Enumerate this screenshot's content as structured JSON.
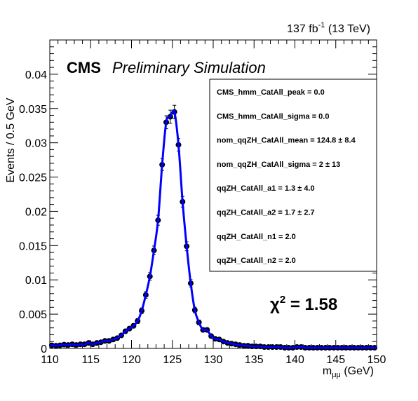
{
  "chart_data": {
    "type": "scatter",
    "lumi_label": "137 fb⁻¹ (13 TeV)",
    "lumi_main": "137 fb",
    "lumi_sup": "-1",
    "lumi_tail": " (13 TeV)",
    "cms_label": "CMS",
    "status_label": "Preliminary Simulation",
    "xlabel_main": "m",
    "xlabel_sub": "μμ",
    "xlabel_unit": " (GeV)",
    "ylabel": "Events / 0.5 GeV",
    "xlim": [
      110,
      150
    ],
    "ylim": [
      0,
      0.045
    ],
    "x_ticks": [
      "110",
      "115",
      "120",
      "125",
      "130",
      "135",
      "140",
      "145",
      "150"
    ],
    "y_ticks": [
      "0",
      "0.005",
      "0.01",
      "0.015",
      "0.02",
      "0.025",
      "0.03",
      "0.035",
      "0.04"
    ],
    "chi2_label": "χ",
    "chi2_sup": "2",
    "chi2_value": " = 1.58",
    "fit_color": "#0000ff",
    "marker_color": "#000000",
    "parameters": [
      "CMS_hmm_CatAll_peak =  0.0",
      "CMS_hmm_CatAll_sigma =  0.0",
      "nom_qqZH_CatAll_mean =  124.8 ± 8.4",
      "nom_qqZH_CatAll_sigma =  2 ± 13",
      "qqZH_CatAll_a1 =  1.3 ± 4.0",
      "qqZH_CatAll_a2 =  1.7 ± 2.7",
      "qqZH_CatAll_n1 =  2.0",
      "qqZH_CatAll_n2 =  2.0"
    ],
    "points": [
      [
        110.25,
        0.00045
      ],
      [
        110.75,
        0.0004
      ],
      [
        111.25,
        0.00045
      ],
      [
        111.75,
        0.00055
      ],
      [
        112.25,
        0.0005
      ],
      [
        112.75,
        0.0006
      ],
      [
        113.25,
        0.0005
      ],
      [
        113.75,
        0.0006
      ],
      [
        114.25,
        0.0006
      ],
      [
        114.75,
        0.0008
      ],
      [
        115.25,
        0.0006
      ],
      [
        115.75,
        0.0008
      ],
      [
        116.25,
        0.0009
      ],
      [
        116.75,
        0.0011
      ],
      [
        117.25,
        0.0011
      ],
      [
        117.75,
        0.0013
      ],
      [
        118.25,
        0.0015
      ],
      [
        118.75,
        0.0019
      ],
      [
        119.25,
        0.0025
      ],
      [
        119.75,
        0.0029
      ],
      [
        120.25,
        0.0033
      ],
      [
        120.75,
        0.004
      ],
      [
        121.25,
        0.0055
      ],
      [
        121.75,
        0.0078
      ],
      [
        122.25,
        0.0105
      ],
      [
        122.75,
        0.0143
      ],
      [
        123.25,
        0.0187
      ],
      [
        123.75,
        0.0268
      ],
      [
        124.25,
        0.033
      ],
      [
        124.75,
        0.0338
      ],
      [
        125.25,
        0.0345
      ],
      [
        125.75,
        0.0297
      ],
      [
        126.25,
        0.0214
      ],
      [
        126.75,
        0.0149
      ],
      [
        127.25,
        0.0095
      ],
      [
        127.75,
        0.0056
      ],
      [
        128.25,
        0.0038
      ],
      [
        128.75,
        0.0027
      ],
      [
        129.25,
        0.0027
      ],
      [
        129.75,
        0.0018
      ],
      [
        130.25,
        0.0014
      ],
      [
        130.75,
        0.0013
      ],
      [
        131.25,
        0.001
      ],
      [
        131.75,
        0.0008
      ],
      [
        132.25,
        0.0007
      ],
      [
        132.75,
        0.0006
      ],
      [
        133.25,
        0.0005
      ],
      [
        133.75,
        0.0004
      ],
      [
        134.25,
        0.0004
      ],
      [
        134.75,
        0.0003
      ],
      [
        135.25,
        0.0003
      ],
      [
        135.75,
        0.0003
      ],
      [
        136.25,
        0.0002
      ],
      [
        136.75,
        0.0002
      ],
      [
        137.25,
        0.0002
      ],
      [
        137.75,
        0.0002
      ],
      [
        138.25,
        0.0002
      ],
      [
        138.75,
        0.0001
      ],
      [
        139.25,
        0.0001
      ],
      [
        139.75,
        0.0001
      ],
      [
        140.25,
        0.0002
      ],
      [
        140.75,
        0.0002
      ],
      [
        141.25,
        0.0001
      ],
      [
        141.75,
        0.0001
      ],
      [
        142.25,
        0.0001
      ],
      [
        142.75,
        0.0001
      ],
      [
        143.25,
        0.0001
      ],
      [
        143.75,
        0.0001
      ],
      [
        144.25,
        0.0001
      ],
      [
        144.75,
        0.0001
      ],
      [
        145.25,
        0.0001
      ],
      [
        145.75,
        0.0001
      ],
      [
        146.25,
        0.0001
      ],
      [
        146.75,
        0.0001
      ],
      [
        147.25,
        0.0001
      ],
      [
        147.75,
        0.0001
      ],
      [
        148.25,
        0.0001
      ],
      [
        148.75,
        0.0001
      ],
      [
        149.25,
        0.0001
      ],
      [
        149.75,
        0.0001
      ]
    ]
  }
}
